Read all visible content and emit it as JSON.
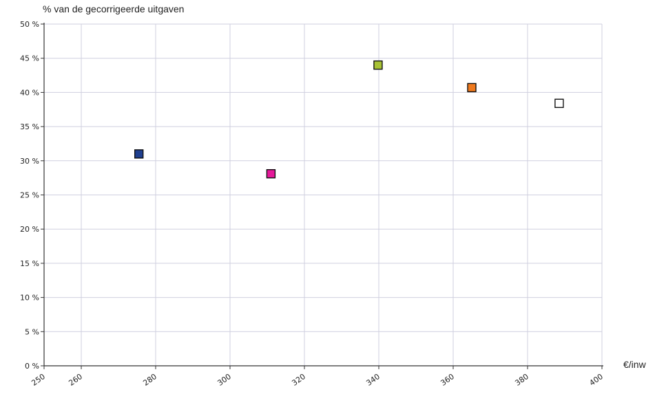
{
  "chart_data": {
    "type": "scatter",
    "ylabel": "% van de gecorrigeerde uitgaven",
    "xlabel": "€/inw",
    "xlim": [
      250,
      400
    ],
    "ylim": [
      0,
      50
    ],
    "x_ticks": [
      250,
      260,
      280,
      300,
      320,
      340,
      360,
      380,
      400
    ],
    "x_tick_labels": [
      "250",
      "260",
      "280",
      "300",
      "320",
      "340",
      "360",
      "380",
      "400"
    ],
    "y_ticks": [
      0,
      5,
      10,
      15,
      20,
      25,
      30,
      35,
      40,
      45,
      50
    ],
    "y_tick_labels": [
      "0 %",
      "5 %",
      "10 %",
      "15 %",
      "20 %",
      "25 %",
      "30 %",
      "35 %",
      "40 %",
      "45 %",
      "50 %"
    ],
    "grid": true,
    "points": [
      {
        "x": 275.5,
        "y": 31.0,
        "color": "#1f3f8f"
      },
      {
        "x": 311.0,
        "y": 28.1,
        "color": "#e5199a"
      },
      {
        "x": 339.8,
        "y": 44.0,
        "color": "#a8c234"
      },
      {
        "x": 365.0,
        "y": 40.7,
        "color": "#f07a1e"
      },
      {
        "x": 388.5,
        "y": 38.4,
        "color": "#ffffff"
      }
    ]
  }
}
